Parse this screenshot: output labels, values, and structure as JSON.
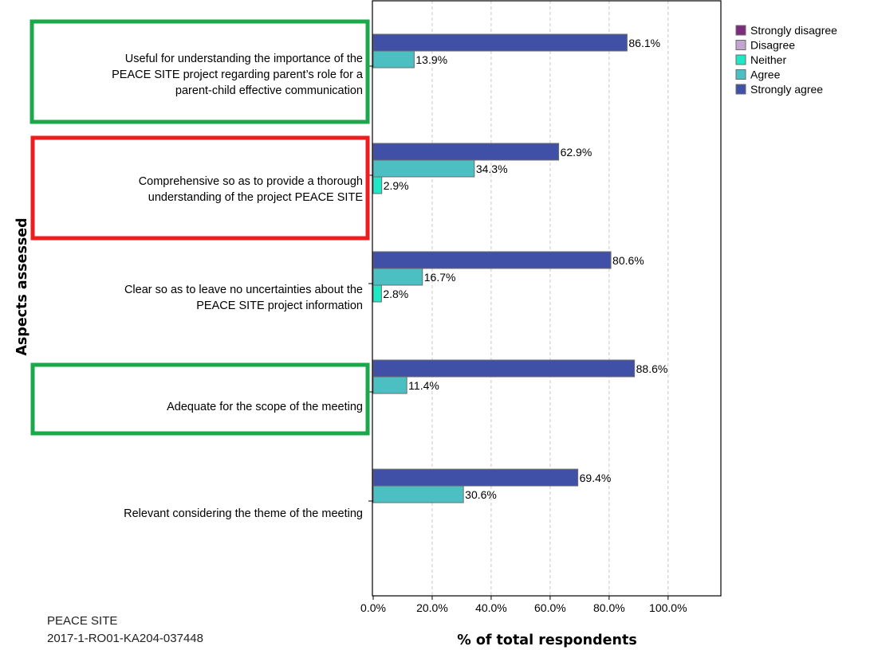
{
  "footer": {
    "project": "PEACE SITE",
    "code": "2017-1-RO01-KA204-037448"
  },
  "chart_data": {
    "type": "bar",
    "orientation": "horizontal",
    "xlabel": "% of total respondents",
    "ylabel": "Aspects assessed",
    "xlim": [
      0,
      110
    ],
    "xticks": [
      "0.0%",
      "20.0%",
      "40.0%",
      "60.0%",
      "80.0%",
      "100.0%"
    ],
    "grid": "vertical dashed",
    "legend_position": "right",
    "legend": [
      {
        "name": "Strongly disagree",
        "color": "#7b2d7b"
      },
      {
        "name": "Disagree",
        "color": "#c4a4d0"
      },
      {
        "name": "Neither",
        "color": "#1ee8c6"
      },
      {
        "name": "Agree",
        "color": "#4cbfc3"
      },
      {
        "name": "Strongly agree",
        "color": "#3f50a6"
      }
    ],
    "categories": [
      {
        "label": [
          "Useful for understanding the importance of the",
          "PEACE SITE project regarding parent’s role for a",
          "parent-child effective communication"
        ],
        "highlight": "green",
        "bars": [
          {
            "series": "Strongly agree",
            "value": 86.1,
            "label": "86.1%"
          },
          {
            "series": "Agree",
            "value": 13.9,
            "label": "13.9%"
          }
        ]
      },
      {
        "label": [
          "Comprehensive so as to provide a thorough",
          "understanding of the project PEACE SITE"
        ],
        "highlight": "red",
        "bars": [
          {
            "series": "Strongly agree",
            "value": 62.9,
            "label": "62.9%"
          },
          {
            "series": "Agree",
            "value": 34.3,
            "label": "34.3%"
          },
          {
            "series": "Neither",
            "value": 2.9,
            "label": "2.9%"
          }
        ]
      },
      {
        "label": [
          "Clear so as to leave no uncertainties about the",
          "PEACE SITE project information"
        ],
        "highlight": "red",
        "bars": [
          {
            "series": "Strongly agree",
            "value": 80.6,
            "label": "80.6%"
          },
          {
            "series": "Agree",
            "value": 16.7,
            "label": "16.7%"
          },
          {
            "series": "Neither",
            "value": 2.8,
            "label": "2.8%"
          }
        ]
      },
      {
        "label": [
          "Adequate for the scope of the meeting"
        ],
        "highlight": "green",
        "bars": [
          {
            "series": "Strongly agree",
            "value": 88.6,
            "label": "88.6%"
          },
          {
            "series": "Agree",
            "value": 11.4,
            "label": "11.4%"
          }
        ]
      },
      {
        "label": [
          "Relevant considering the theme of the meeting"
        ],
        "highlight": "none",
        "bars": [
          {
            "series": "Strongly agree",
            "value": 69.4,
            "label": "69.4%"
          },
          {
            "series": "Agree",
            "value": 30.6,
            "label": "30.6%"
          }
        ]
      }
    ],
    "highlight_colors": {
      "green": "#1aa84a",
      "red": "#ee1c1c"
    }
  }
}
